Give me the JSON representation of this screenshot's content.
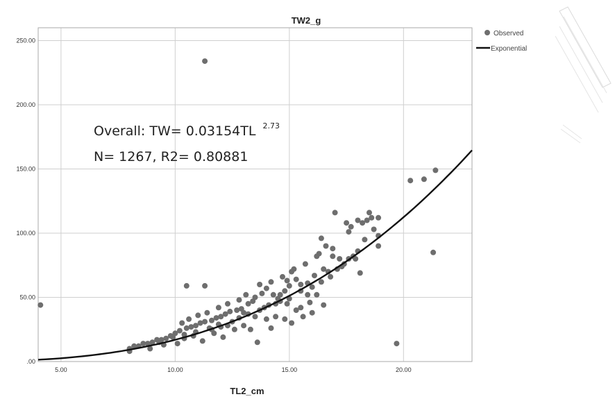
{
  "chart_data": {
    "type": "scatter",
    "title": "TW2_g",
    "xlabel": "TL2_cm",
    "ylabel": "",
    "xlim": [
      4.0,
      23.0
    ],
    "ylim": [
      0,
      260
    ],
    "x_ticks": [
      "5.00",
      "10.00",
      "15.00",
      "20.00"
    ],
    "x_tick_values": [
      5,
      10,
      15,
      20
    ],
    "y_ticks": [
      ".00",
      "50.00",
      "100.00",
      "150.00",
      "200.00",
      "250.00"
    ],
    "y_tick_values": [
      0,
      50,
      100,
      150,
      200,
      250
    ],
    "grid": true,
    "legend_position": "top-right",
    "legend": [
      "Observed",
      "Exponential"
    ],
    "colors": {
      "points": "#6e6e6e",
      "curve": "#111111",
      "grid": "#cfcfcf"
    },
    "annotation": {
      "line1_main": "Overall: TW= 0.03154TL",
      "line1_sup": "2.73",
      "line2": "N= 1267, R2= 0.80881"
    },
    "fit": {
      "name": "Exponential",
      "a": 0.03154,
      "b": 2.73,
      "x_range": [
        4.0,
        23.0
      ]
    },
    "series": [
      {
        "name": "Observed",
        "points": [
          [
            4.1,
            44
          ],
          [
            11.3,
            234
          ],
          [
            10.5,
            59
          ],
          [
            11.3,
            59
          ],
          [
            19.7,
            14
          ],
          [
            21.3,
            85
          ],
          [
            20.9,
            142
          ],
          [
            21.4,
            149
          ],
          [
            20.3,
            141
          ],
          [
            18.9,
            90
          ],
          [
            18.9,
            98
          ],
          [
            18.9,
            112
          ],
          [
            18.5,
            116
          ],
          [
            18.6,
            112
          ],
          [
            18.4,
            110
          ],
          [
            18.2,
            108
          ],
          [
            18.0,
            110
          ],
          [
            17.7,
            105
          ],
          [
            17.6,
            101
          ],
          [
            17.5,
            108
          ],
          [
            17.0,
            116
          ],
          [
            18.0,
            86
          ],
          [
            18.1,
            69
          ],
          [
            17.9,
            80
          ],
          [
            17.2,
            80
          ],
          [
            17.4,
            76
          ],
          [
            16.9,
            82
          ],
          [
            16.6,
            90
          ],
          [
            16.9,
            88
          ],
          [
            16.4,
            96
          ],
          [
            16.7,
            70
          ],
          [
            16.5,
            72
          ],
          [
            16.5,
            44
          ],
          [
            16.1,
            67
          ],
          [
            16.2,
            82
          ],
          [
            15.8,
            61
          ],
          [
            15.5,
            60
          ],
          [
            15.3,
            64
          ],
          [
            15.1,
            70
          ],
          [
            15.0,
            59
          ],
          [
            14.9,
            63
          ],
          [
            14.8,
            55
          ],
          [
            14.6,
            52
          ],
          [
            14.5,
            49
          ],
          [
            14.3,
            52
          ],
          [
            14.0,
            57
          ],
          [
            13.8,
            53
          ],
          [
            13.5,
            50
          ],
          [
            13.4,
            47
          ],
          [
            13.2,
            45
          ],
          [
            12.9,
            41
          ],
          [
            12.7,
            40
          ],
          [
            12.4,
            39
          ],
          [
            12.2,
            37
          ],
          [
            12.0,
            35
          ],
          [
            11.8,
            34
          ],
          [
            11.6,
            32
          ],
          [
            11.3,
            31
          ],
          [
            11.1,
            30
          ],
          [
            10.9,
            28
          ],
          [
            10.7,
            27
          ],
          [
            10.5,
            26
          ],
          [
            10.2,
            24
          ],
          [
            10.0,
            22
          ],
          [
            9.8,
            20
          ],
          [
            9.6,
            18
          ],
          [
            9.4,
            17
          ],
          [
            9.2,
            17
          ],
          [
            9.0,
            15
          ],
          [
            8.8,
            14
          ],
          [
            8.6,
            14
          ],
          [
            8.4,
            12
          ],
          [
            8.2,
            12
          ],
          [
            8.0,
            10
          ],
          [
            8.0,
            8
          ],
          [
            8.9,
            10
          ],
          [
            9.5,
            13
          ],
          [
            10.1,
            14
          ],
          [
            10.4,
            18
          ],
          [
            10.8,
            20
          ],
          [
            11.2,
            16
          ],
          [
            11.7,
            22
          ],
          [
            12.1,
            19
          ],
          [
            12.6,
            25
          ],
          [
            13.0,
            28
          ],
          [
            13.3,
            25
          ],
          [
            13.6,
            15
          ],
          [
            14.0,
            33
          ],
          [
            14.4,
            35
          ],
          [
            14.8,
            33
          ],
          [
            15.3,
            40
          ],
          [
            15.6,
            35
          ],
          [
            15.9,
            46
          ],
          [
            16.2,
            52
          ],
          [
            10.3,
            30
          ],
          [
            10.6,
            33
          ],
          [
            11.0,
            36
          ],
          [
            11.4,
            38
          ],
          [
            11.9,
            42
          ],
          [
            12.3,
            45
          ],
          [
            12.8,
            48
          ],
          [
            13.1,
            52
          ],
          [
            13.7,
            60
          ],
          [
            14.2,
            62
          ],
          [
            14.7,
            66
          ],
          [
            15.2,
            72
          ],
          [
            15.7,
            76
          ],
          [
            16.3,
            84
          ],
          [
            12.5,
            31
          ],
          [
            12.8,
            34
          ],
          [
            13.2,
            37
          ],
          [
            13.7,
            40
          ],
          [
            14.1,
            44
          ],
          [
            14.6,
            47
          ],
          [
            11.5,
            26
          ],
          [
            11.9,
            29
          ],
          [
            12.3,
            28
          ],
          [
            10.9,
            23
          ],
          [
            10.4,
            21
          ],
          [
            9.9,
            19
          ],
          [
            9.3,
            15
          ],
          [
            13.9,
            42
          ],
          [
            14.4,
            45
          ],
          [
            15.0,
            49
          ],
          [
            15.5,
            55
          ],
          [
            16.0,
            58
          ],
          [
            16.8,
            66
          ],
          [
            17.3,
            74
          ],
          [
            17.8,
            82
          ],
          [
            18.3,
            95
          ],
          [
            18.7,
            103
          ],
          [
            13.0,
            38
          ],
          [
            12.0,
            27
          ],
          [
            11.6,
            25
          ],
          [
            13.5,
            35
          ],
          [
            14.9,
            45
          ],
          [
            15.8,
            52
          ],
          [
            16.4,
            62
          ],
          [
            17.1,
            72
          ],
          [
            17.6,
            80
          ],
          [
            14.2,
            26
          ],
          [
            15.1,
            30
          ],
          [
            15.5,
            42
          ],
          [
            16.0,
            38
          ]
        ]
      }
    ]
  }
}
